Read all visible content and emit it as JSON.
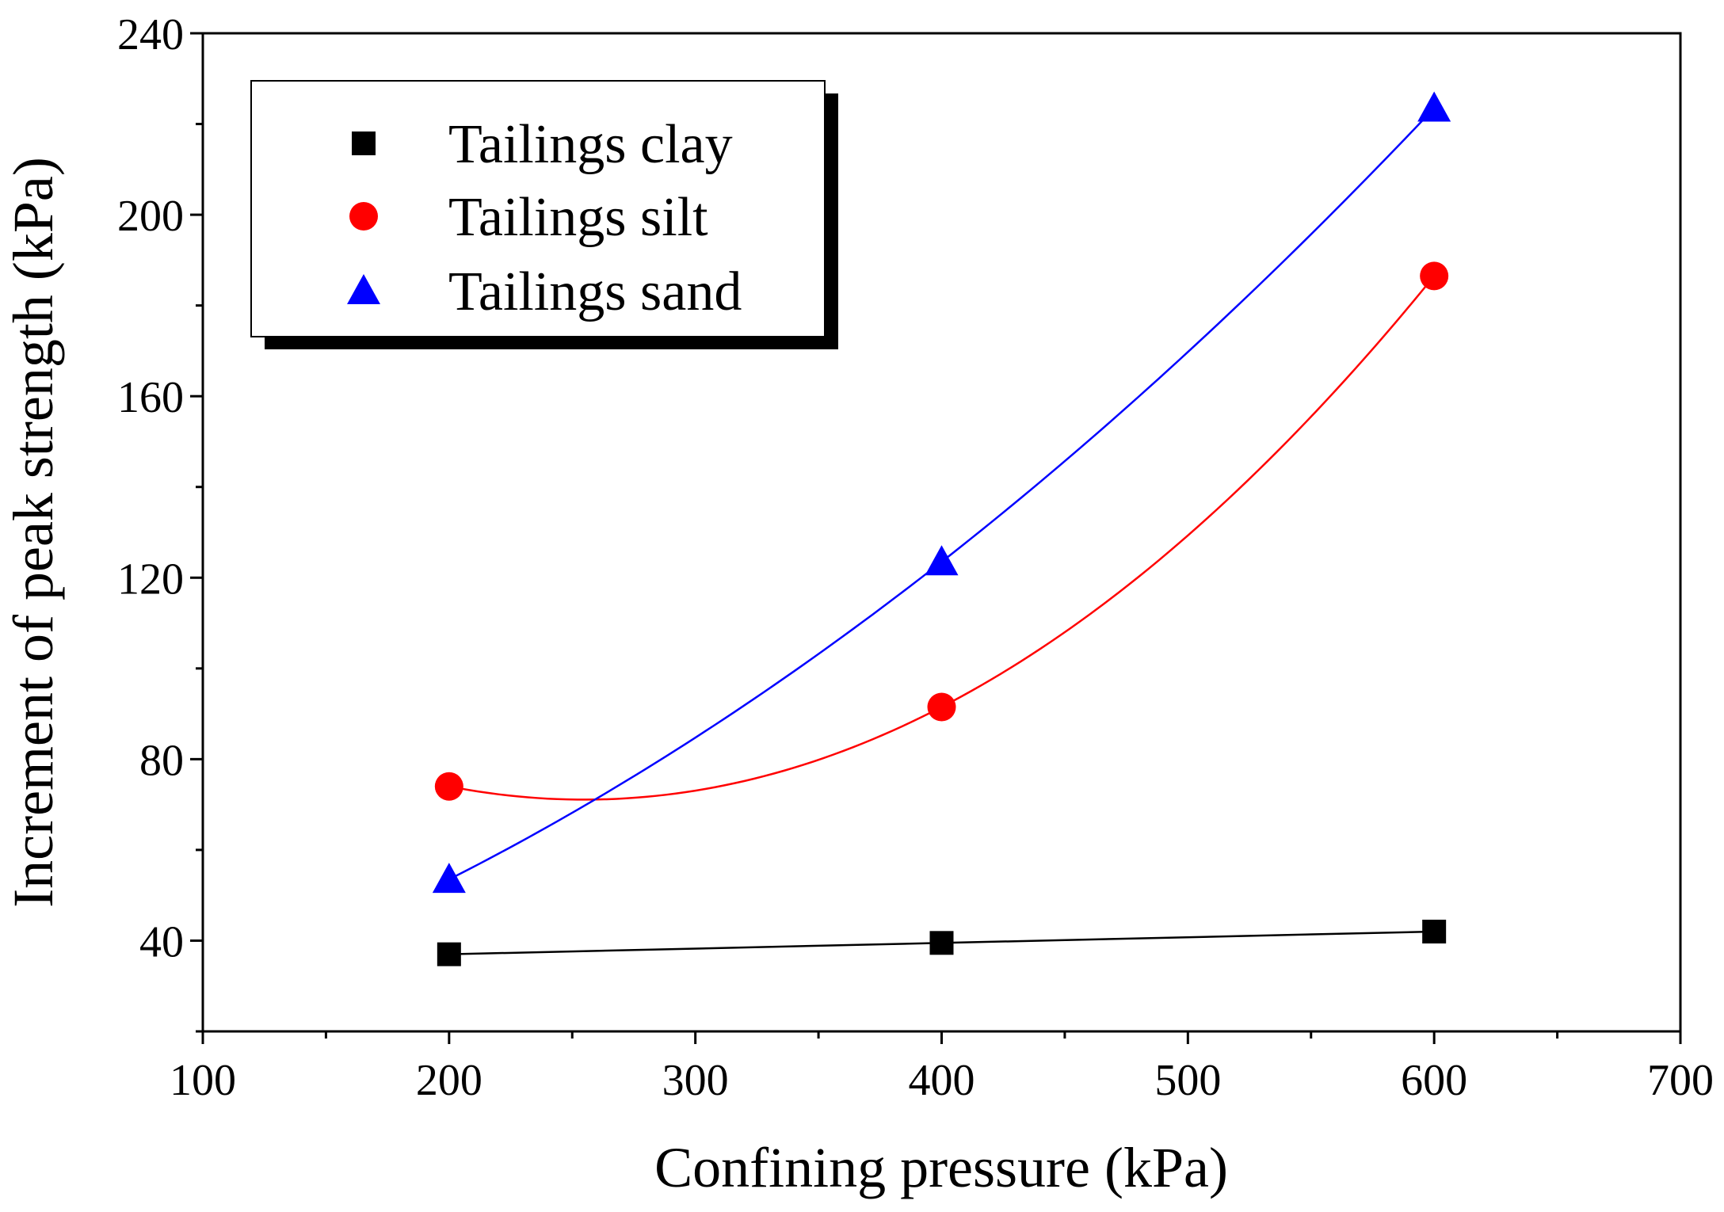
{
  "chart_data": {
    "type": "scatter",
    "title": "",
    "xlabel": "Confining pressure (kPa)",
    "ylabel": "Increment of peak strength (kPa)",
    "xlim": [
      100,
      700
    ],
    "ylim": [
      20,
      240
    ],
    "x_ticks": [
      100,
      200,
      300,
      400,
      500,
      600,
      700
    ],
    "x_tick_labels": [
      "100",
      "200",
      "300",
      "400",
      "500",
      "600",
      "700"
    ],
    "y_ticks": [
      40,
      80,
      120,
      160,
      200,
      240
    ],
    "y_tick_labels": [
      "40",
      "80",
      "120",
      "160",
      "200",
      "240"
    ],
    "grid": false,
    "legend_position": "top-left",
    "series": [
      {
        "name": "Tailings clay",
        "marker": "square",
        "color": "#000000",
        "x": [
          200,
          400,
          600
        ],
        "y": [
          37,
          39.5,
          42
        ],
        "fit": "linear"
      },
      {
        "name": "Tailings silt",
        "marker": "circle",
        "color": "#ff0000",
        "x": [
          200,
          400,
          600
        ],
        "y": [
          74,
          91.5,
          186.5
        ],
        "fit": "quadratic"
      },
      {
        "name": "Tailings sand",
        "marker": "triangle",
        "color": "#0000ff",
        "x": [
          200,
          400,
          600
        ],
        "y": [
          53.5,
          123.5,
          223.5
        ],
        "fit": "quadratic"
      }
    ]
  }
}
